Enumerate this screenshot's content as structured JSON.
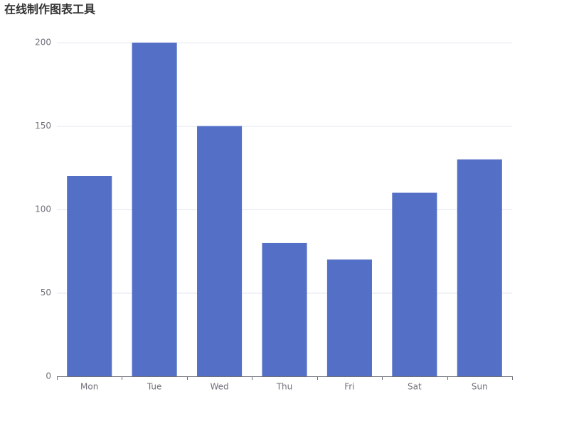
{
  "chart_data": {
    "type": "bar",
    "title": "在线制作图表工具",
    "categories": [
      "Mon",
      "Tue",
      "Wed",
      "Thu",
      "Fri",
      "Sat",
      "Sun"
    ],
    "values": [
      120,
      200,
      150,
      80,
      70,
      110,
      130
    ],
    "color": "#5470c6",
    "ylim": [
      0,
      200
    ],
    "yticks": [
      0,
      50,
      100,
      150,
      200
    ],
    "grid": true
  }
}
